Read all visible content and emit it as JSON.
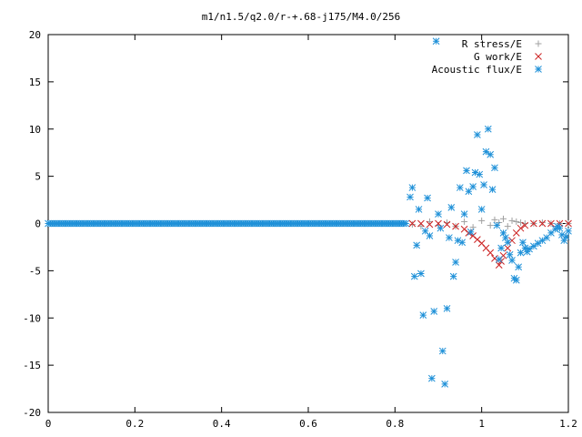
{
  "chart_data": {
    "type": "scatter",
    "title": "m1/n1.5/q2.0/r-+.68-j175/M4.0/256",
    "xlim": [
      0,
      1.2
    ],
    "ylim": [
      -20,
      20
    ],
    "xticks": [
      "0",
      "0.2",
      "0.4",
      "0.6",
      "0.8",
      "1",
      "1.2"
    ],
    "yticks": [
      "-20",
      "-15",
      "-10",
      "-5",
      "0",
      "5",
      "10",
      "15",
      "20"
    ],
    "grid": false,
    "legend_position": "top-right",
    "series": [
      {
        "name": "R stress/E",
        "marker": "plus",
        "color": "#a0a0a0",
        "points": [
          [
            0.84,
            -0.1
          ],
          [
            0.86,
            -0.3
          ],
          [
            0.88,
            0.2
          ],
          [
            0.9,
            -0.2
          ],
          [
            0.92,
            0.1
          ],
          [
            0.94,
            -0.3
          ],
          [
            0.96,
            0.2
          ],
          [
            0.98,
            -0.4
          ],
          [
            1.0,
            0.3
          ],
          [
            1.02,
            -0.2
          ],
          [
            1.03,
            0.4
          ],
          [
            1.04,
            0.1
          ],
          [
            1.05,
            0.5
          ],
          [
            1.06,
            -0.3
          ],
          [
            1.07,
            0.3
          ],
          [
            1.08,
            0.2
          ],
          [
            1.09,
            0.1
          ],
          [
            1.1,
            0.0
          ],
          [
            1.12,
            0.0
          ],
          [
            1.14,
            0.1
          ],
          [
            1.16,
            0.0
          ],
          [
            1.18,
            0.0
          ],
          [
            1.2,
            0.0
          ]
        ]
      },
      {
        "name": "G work/E",
        "marker": "cross",
        "color": "#cc2222",
        "points": [
          [
            0.84,
            0.0
          ],
          [
            0.86,
            0.0
          ],
          [
            0.88,
            -0.1
          ],
          [
            0.9,
            0.0
          ],
          [
            0.92,
            -0.1
          ],
          [
            0.94,
            -0.3
          ],
          [
            0.96,
            -0.6
          ],
          [
            0.97,
            -1.0
          ],
          [
            0.98,
            -1.3
          ],
          [
            0.99,
            -1.7
          ],
          [
            1.0,
            -2.1
          ],
          [
            1.01,
            -2.6
          ],
          [
            1.02,
            -3.1
          ],
          [
            1.03,
            -3.7
          ],
          [
            1.04,
            -4.4
          ],
          [
            1.045,
            -4.0
          ],
          [
            1.05,
            -3.4
          ],
          [
            1.06,
            -2.6
          ],
          [
            1.07,
            -1.8
          ],
          [
            1.08,
            -1.0
          ],
          [
            1.09,
            -0.5
          ],
          [
            1.1,
            -0.2
          ],
          [
            1.12,
            0.0
          ],
          [
            1.14,
            0.0
          ],
          [
            1.16,
            0.0
          ],
          [
            1.18,
            0.0
          ],
          [
            1.2,
            0.0
          ]
        ]
      },
      {
        "name": "Acoustic flux/E",
        "marker": "star",
        "color": "#1e90d8",
        "points": [
          [
            0.835,
            2.8
          ],
          [
            0.84,
            3.8
          ],
          [
            0.845,
            -5.6
          ],
          [
            0.85,
            -2.3
          ],
          [
            0.855,
            1.5
          ],
          [
            0.86,
            -5.3
          ],
          [
            0.865,
            -9.7
          ],
          [
            0.87,
            -0.8
          ],
          [
            0.875,
            2.7
          ],
          [
            0.88,
            -1.3
          ],
          [
            0.885,
            -16.4
          ],
          [
            0.89,
            -9.3
          ],
          [
            0.895,
            19.3
          ],
          [
            0.9,
            1.0
          ],
          [
            0.905,
            -0.5
          ],
          [
            0.91,
            -13.5
          ],
          [
            0.915,
            -17.0
          ],
          [
            0.92,
            -9.0
          ],
          [
            0.925,
            -1.5
          ],
          [
            0.93,
            1.7
          ],
          [
            0.935,
            -5.6
          ],
          [
            0.94,
            -4.1
          ],
          [
            0.945,
            -1.8
          ],
          [
            0.95,
            3.8
          ],
          [
            0.955,
            -2.0
          ],
          [
            0.96,
            1.0
          ],
          [
            0.965,
            5.6
          ],
          [
            0.97,
            3.4
          ],
          [
            0.975,
            -0.9
          ],
          [
            0.98,
            3.9
          ],
          [
            0.985,
            5.4
          ],
          [
            0.99,
            9.4
          ],
          [
            0.995,
            5.2
          ],
          [
            1.0,
            1.5
          ],
          [
            1.005,
            4.1
          ],
          [
            1.01,
            7.6
          ],
          [
            1.015,
            10.0
          ],
          [
            1.02,
            7.3
          ],
          [
            1.025,
            3.6
          ],
          [
            1.03,
            5.9
          ],
          [
            1.035,
            -0.2
          ],
          [
            1.04,
            -3.8
          ],
          [
            1.045,
            -2.6
          ],
          [
            1.05,
            -1.0
          ],
          [
            1.055,
            -1.5
          ],
          [
            1.06,
            -2.0
          ],
          [
            1.065,
            -3.3
          ],
          [
            1.07,
            -3.9
          ],
          [
            1.075,
            -5.8
          ],
          [
            1.08,
            -6.0
          ],
          [
            1.085,
            -4.6
          ],
          [
            1.09,
            -3.1
          ],
          [
            1.095,
            -2.0
          ],
          [
            1.1,
            -2.6
          ],
          [
            1.105,
            -3.0
          ],
          [
            1.11,
            -2.7
          ],
          [
            1.12,
            -2.4
          ],
          [
            1.13,
            -2.1
          ],
          [
            1.14,
            -1.8
          ],
          [
            1.15,
            -1.5
          ],
          [
            1.16,
            -1.0
          ],
          [
            1.17,
            -0.6
          ],
          [
            1.175,
            -0.3
          ],
          [
            1.18,
            -0.5
          ],
          [
            1.185,
            -1.2
          ],
          [
            1.19,
            -1.8
          ],
          [
            1.195,
            -1.4
          ],
          [
            1.2,
            -0.8
          ]
        ]
      }
    ]
  }
}
